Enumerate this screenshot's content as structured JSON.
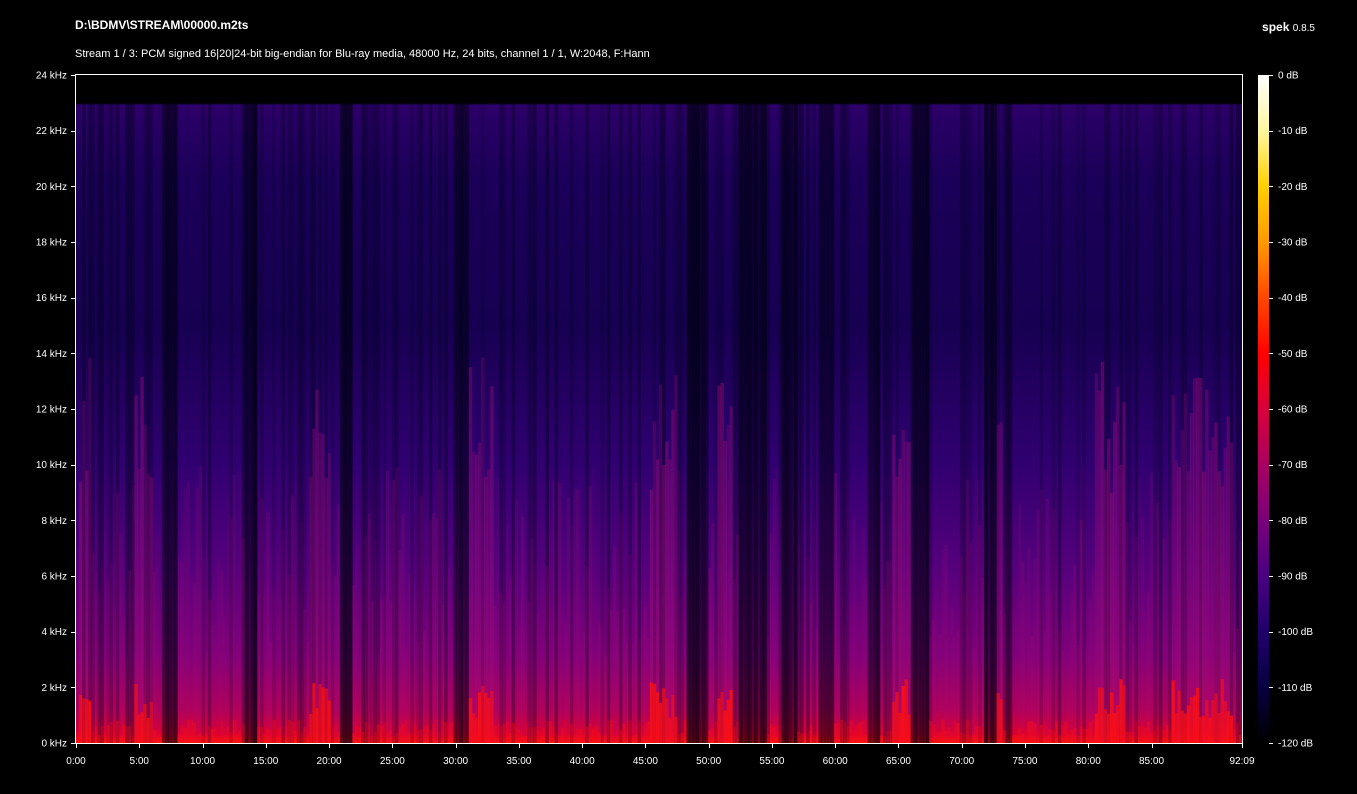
{
  "header": {
    "file_path": "D:\\BDMV\\STREAM\\00000.m2ts",
    "stream_info": "Stream 1 / 3: PCM signed 16|20|24-bit big-endian for Blu-ray media, 48000 Hz, 24 bits, channel 1 / 1, W:2048, F:Hann",
    "app_name": "spek",
    "app_version": "0.8.5"
  },
  "chart_data": {
    "type": "heatmap",
    "title": "",
    "xlabel": "",
    "ylabel": "",
    "x_unit": "time (mm:ss)",
    "x_range_minutes": [
      0,
      92.15
    ],
    "x_tick_minutes": [
      0,
      5,
      10,
      15,
      20,
      25,
      30,
      35,
      40,
      45,
      50,
      55,
      60,
      65,
      70,
      75,
      80,
      85,
      92.15
    ],
    "x_tick_labels": [
      "0:00",
      "5:00",
      "10:00",
      "15:00",
      "20:00",
      "25:00",
      "30:00",
      "35:00",
      "40:00",
      "45:00",
      "50:00",
      "55:00",
      "60:00",
      "65:00",
      "70:00",
      "75:00",
      "80:00",
      "85:00",
      "92:09"
    ],
    "y_range_khz": [
      0,
      24
    ],
    "y_tick_khz": [
      0,
      2,
      4,
      6,
      8,
      10,
      12,
      14,
      16,
      18,
      20,
      22,
      24
    ],
    "y_tick_labels": [
      "0 kHz",
      "2 kHz",
      "4 kHz",
      "6 kHz",
      "8 kHz",
      "10 kHz",
      "12 kHz",
      "14 kHz",
      "16 kHz",
      "18 kHz",
      "20 kHz",
      "22 kHz",
      "24 kHz"
    ],
    "colorbar": {
      "range_db": [
        -120,
        0
      ],
      "tick_db": [
        0,
        -10,
        -20,
        -30,
        -40,
        -50,
        -60,
        -70,
        -80,
        -90,
        -100,
        -110,
        -120
      ],
      "tick_labels": [
        "0 dB",
        "-10 dB",
        "-20 dB",
        "-30 dB",
        "-40 dB",
        "-50 dB",
        "-60 dB",
        "-70 dB",
        "-80 dB",
        "-90 dB",
        "-100 dB",
        "-110 dB",
        "-120 dB"
      ],
      "colors": [
        "#ffffff",
        "#fff7a0",
        "#ffd000",
        "#ff9a00",
        "#ff4800",
        "#ff0000",
        "#d8003c",
        "#a80060",
        "#7a007a",
        "#4a0080",
        "#20006a",
        "#080040",
        "#000000"
      ]
    },
    "spectrum": {
      "cutoff_khz": 23,
      "note": "energy concentrated below ~4 kHz, brightest (red) near 0 kHz",
      "quiet_segments_minutes": [
        [
          6.8,
          8.0
        ],
        [
          13.4,
          14.4
        ],
        [
          20.8,
          21.8
        ],
        [
          29.8,
          31.0
        ],
        [
          48.3,
          50.0
        ],
        [
          52.4,
          54.6
        ],
        [
          55.8,
          57.0
        ],
        [
          58.7,
          60.0
        ],
        [
          62.5,
          63.5
        ],
        [
          66.0,
          67.5
        ],
        [
          71.8,
          72.8
        ],
        [
          73.4,
          74.0
        ]
      ],
      "loud_segments_minutes": [
        [
          0.3,
          1.3
        ],
        [
          4.7,
          6.0
        ],
        [
          18.5,
          20.2
        ],
        [
          31.0,
          33.0
        ],
        [
          45.3,
          47.5
        ],
        [
          50.6,
          52.0
        ],
        [
          64.5,
          66.0
        ],
        [
          72.8,
          73.3
        ],
        [
          80.5,
          83.0
        ],
        [
          86.5,
          91.5
        ]
      ]
    }
  }
}
